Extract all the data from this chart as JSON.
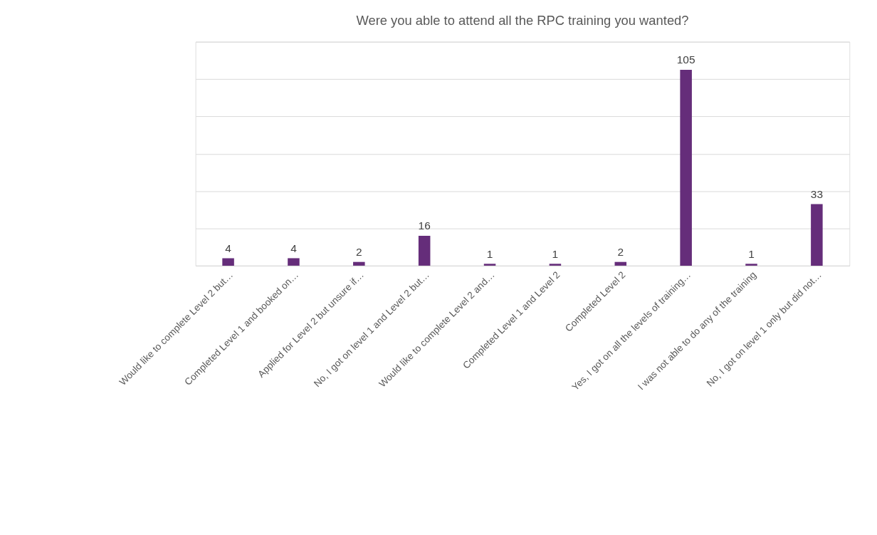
{
  "chart_data": {
    "type": "bar",
    "title": "Were you able to attend all the RPC training you wanted?",
    "categories": [
      "Would like to complete Level 2 but…",
      "Completed Level 1 and booked on…",
      "Applied for Level 2 but unsure if…",
      "No, I got on level 1 and Level 2 but…",
      "Would like to complete Level 2 and…",
      "Completed Level 1 and Level 2",
      "Completed Level 2",
      "Yes, I got on all the levels of training…",
      "I was not able to do any of the training",
      "No, I got on level 1 only but did not…"
    ],
    "values": [
      4,
      4,
      2,
      16,
      1,
      1,
      2,
      105,
      1,
      33
    ],
    "color": "#652d7a",
    "ylim": [
      0,
      120
    ],
    "yticks": [
      {
        "value": 0,
        "label": null
      },
      {
        "value": 20,
        "label": null
      },
      {
        "value": 40,
        "label": null
      },
      {
        "value": 60,
        "label": null
      },
      {
        "value": 80,
        "label": null
      },
      {
        "value": 100,
        "label": null
      },
      {
        "value": 120,
        "label": null
      }
    ],
    "grid": "y",
    "tick_labels": "x",
    "data_labels": true
  }
}
